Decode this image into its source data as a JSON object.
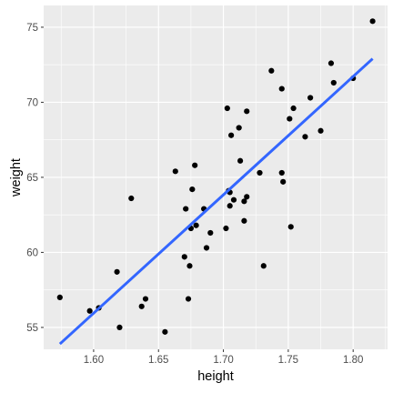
{
  "chart_data": {
    "type": "scatter",
    "xlabel": "height",
    "ylabel": "weight",
    "xlim": [
      1.5615,
      1.8265
    ],
    "ylim": [
      53.54,
      76.45
    ],
    "x_ticks": [
      1.6,
      1.65,
      1.7,
      1.75,
      1.8
    ],
    "x_tick_labels": [
      "1.60",
      "1.65",
      "1.70",
      "1.75",
      "1.80"
    ],
    "y_ticks": [
      55,
      60,
      65,
      70,
      75
    ],
    "y_tick_labels": [
      "55",
      "60",
      "65",
      "70",
      "75"
    ],
    "grid": true,
    "legend": "none",
    "colors": {
      "panel": "#ebebeb",
      "grid": "#ffffff",
      "points": "#000000",
      "fit_line": "#3366ff",
      "tick_text": "#4d4d4d"
    },
    "series": [
      {
        "kind": "points",
        "points": [
          [
            1.574,
            57.0
          ],
          [
            1.597,
            56.1
          ],
          [
            1.604,
            56.3
          ],
          [
            1.618,
            58.7
          ],
          [
            1.62,
            55.0
          ],
          [
            1.629,
            63.6
          ],
          [
            1.637,
            56.4
          ],
          [
            1.64,
            56.9
          ],
          [
            1.655,
            54.7
          ],
          [
            1.663,
            65.4
          ],
          [
            1.67,
            59.7
          ],
          [
            1.671,
            62.9
          ],
          [
            1.673,
            56.9
          ],
          [
            1.674,
            59.1
          ],
          [
            1.675,
            61.6
          ],
          [
            1.676,
            64.2
          ],
          [
            1.678,
            65.8
          ],
          [
            1.679,
            61.8
          ],
          [
            1.685,
            62.9
          ],
          [
            1.687,
            60.3
          ],
          [
            1.69,
            61.3
          ],
          [
            1.702,
            61.6
          ],
          [
            1.703,
            69.6
          ],
          [
            1.704,
            64.1
          ],
          [
            1.705,
            64.0
          ],
          [
            1.705,
            63.1
          ],
          [
            1.706,
            67.8
          ],
          [
            1.708,
            63.5
          ],
          [
            1.712,
            68.3
          ],
          [
            1.713,
            66.1
          ],
          [
            1.716,
            63.4
          ],
          [
            1.716,
            62.1
          ],
          [
            1.718,
            63.7
          ],
          [
            1.718,
            69.4
          ],
          [
            1.728,
            65.3
          ],
          [
            1.731,
            59.1
          ],
          [
            1.737,
            72.1
          ],
          [
            1.745,
            70.9
          ],
          [
            1.745,
            65.3
          ],
          [
            1.746,
            64.7
          ],
          [
            1.751,
            68.9
          ],
          [
            1.752,
            61.7
          ],
          [
            1.754,
            69.6
          ],
          [
            1.763,
            67.7
          ],
          [
            1.767,
            70.3
          ],
          [
            1.775,
            68.1
          ],
          [
            1.783,
            72.6
          ],
          [
            1.785,
            71.3
          ],
          [
            1.8,
            71.6
          ],
          [
            1.815,
            75.4
          ]
        ]
      },
      {
        "kind": "fit_line",
        "points": [
          [
            1.574,
            53.9
          ],
          [
            1.815,
            72.9
          ]
        ]
      }
    ]
  }
}
